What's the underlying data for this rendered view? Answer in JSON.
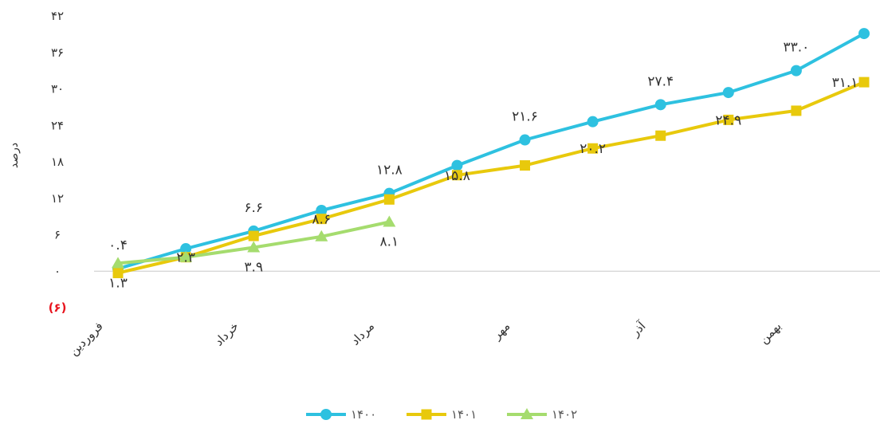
{
  "chart_data": {
    "type": "line",
    "ylabel": "درصد",
    "ylim": [
      -6,
      42
    ],
    "yticks": [
      {
        "value": 42,
        "label": "۴۲"
      },
      {
        "value": 36,
        "label": "۳۶"
      },
      {
        "value": 30,
        "label": "۳۰"
      },
      {
        "value": 24,
        "label": "۲۴"
      },
      {
        "value": 18,
        "label": "۱۸"
      },
      {
        "value": 12,
        "label": "۱۲"
      },
      {
        "value": 6,
        "label": "۶"
      },
      {
        "value": 0,
        "label": "۰"
      },
      {
        "value": -6,
        "label": "(۶)"
      }
    ],
    "negative_color": "#e8141e",
    "x_labels": [
      "فروردین",
      "خرداد",
      "مرداد",
      "مهر",
      "آذر",
      "بهمن"
    ],
    "series": [
      {
        "name": "۱۴۰۰",
        "color": "#2ec1e0",
        "marker": "circle",
        "values": [
          0.4,
          3.7,
          6.6,
          10.0,
          12.8,
          17.4,
          21.6,
          24.6,
          27.4,
          29.4,
          33.0,
          39.1
        ]
      },
      {
        "name": "۱۴۰۱",
        "color": "#e8c90c",
        "marker": "square",
        "values": [
          -0.3,
          2.3,
          5.8,
          8.6,
          11.8,
          15.8,
          17.4,
          20.2,
          22.3,
          24.9,
          26.4,
          31.1
        ]
      },
      {
        "name": "۱۴۰۲",
        "color": "#a5dc6e",
        "marker": "triangle",
        "values": [
          1.3,
          2.3,
          3.9,
          5.7,
          8.1
        ]
      }
    ],
    "data_labels": [
      {
        "series": 0,
        "index": 0,
        "text": "۰.۴",
        "pos": "above"
      },
      {
        "series": 0,
        "index": 2,
        "text": "۶.۶",
        "pos": "above"
      },
      {
        "series": 0,
        "index": 4,
        "text": "۱۲.۸",
        "pos": "above"
      },
      {
        "series": 0,
        "index": 6,
        "text": "۲۱.۶",
        "pos": "above"
      },
      {
        "series": 0,
        "index": 8,
        "text": "۲۷.۴",
        "pos": "above"
      },
      {
        "series": 0,
        "index": 10,
        "text": "۳۳.۰",
        "pos": "above"
      },
      {
        "series": 1,
        "index": 1,
        "text": "۲.۳",
        "pos": "on"
      },
      {
        "series": 1,
        "index": 3,
        "text": "۸.۶",
        "pos": "on"
      },
      {
        "series": 1,
        "index": 5,
        "text": "۱۵.۸",
        "pos": "on"
      },
      {
        "series": 1,
        "index": 7,
        "text": "۲۰.۲",
        "pos": "on"
      },
      {
        "series": 1,
        "index": 9,
        "text": "۲۴.۹",
        "pos": "on"
      },
      {
        "series": 1,
        "index": 11,
        "text": "۳۱.۱",
        "pos": "on"
      },
      {
        "series": 2,
        "index": 0,
        "text": "۱.۳",
        "pos": "below"
      },
      {
        "series": 2,
        "index": 2,
        "text": "۳.۹",
        "pos": "below"
      },
      {
        "series": 2,
        "index": 4,
        "text": "۸.۱",
        "pos": "below"
      }
    ],
    "legend_position": "bottom",
    "grid": false
  }
}
